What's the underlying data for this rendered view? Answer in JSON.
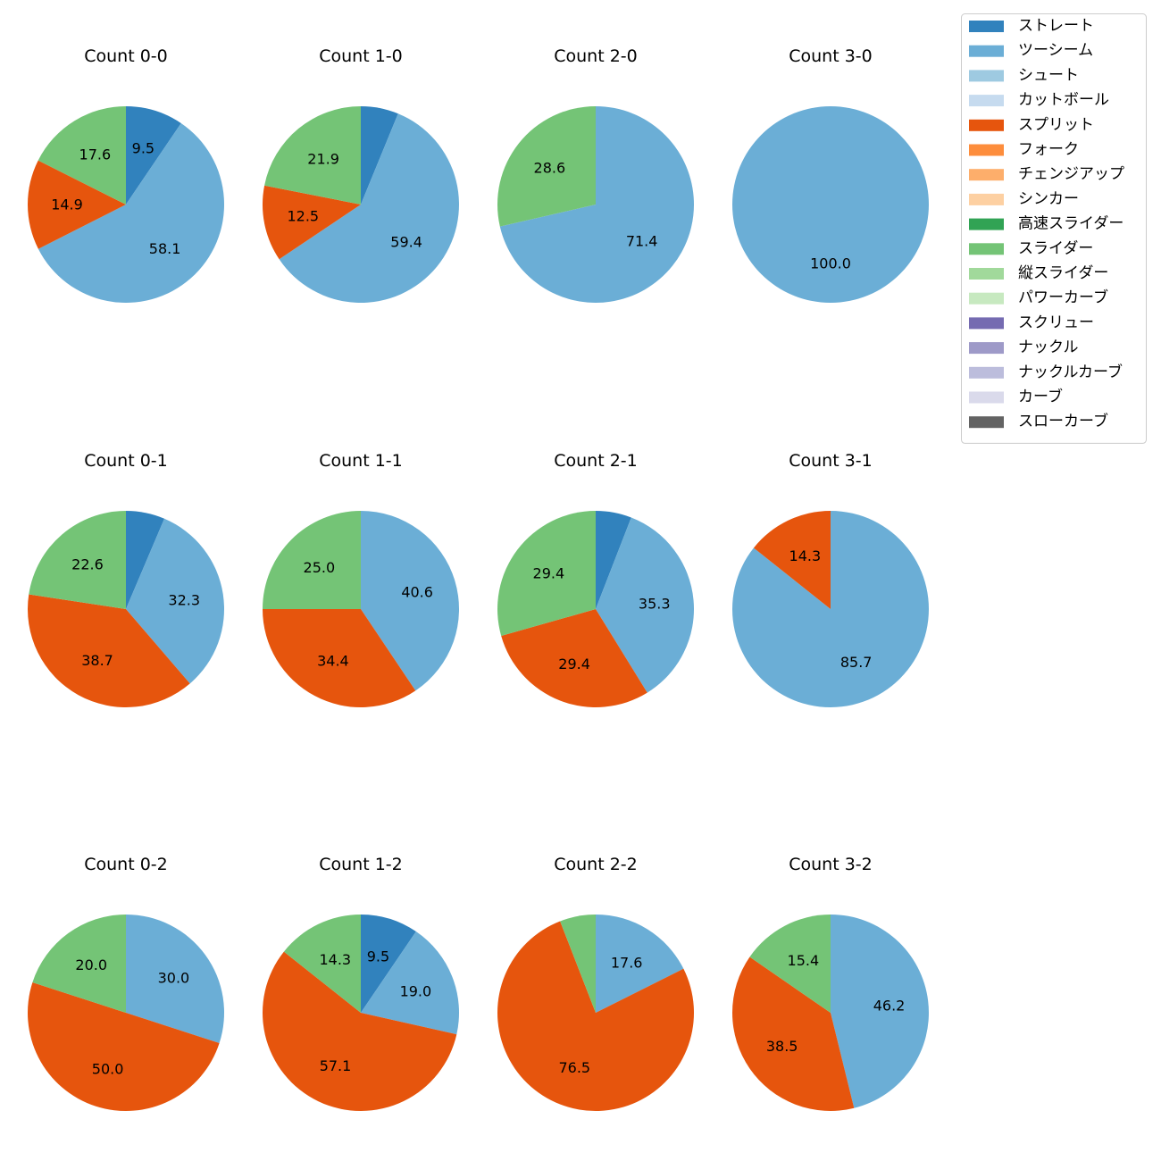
{
  "chart_data": {
    "type": "pie",
    "legend": {
      "position": "top-right",
      "entries": [
        {
          "name": "ストレート",
          "color": "#3182bd"
        },
        {
          "name": "ツーシーム",
          "color": "#6baed6"
        },
        {
          "name": "シュート",
          "color": "#9ecae1"
        },
        {
          "name": "カットボール",
          "color": "#c6dbef"
        },
        {
          "name": "スプリット",
          "color": "#e6550d"
        },
        {
          "name": "フォーク",
          "color": "#fd8d3c"
        },
        {
          "name": "チェンジアップ",
          "color": "#fdae6b"
        },
        {
          "name": "シンカー",
          "color": "#fdd0a2"
        },
        {
          "name": "高速スライダー",
          "color": "#31a354"
        },
        {
          "name": "スライダー",
          "color": "#74c476"
        },
        {
          "name": "縦スライダー",
          "color": "#a1d99b"
        },
        {
          "name": "パワーカーブ",
          "color": "#c7e9c0"
        },
        {
          "name": "スクリュー",
          "color": "#756bb1"
        },
        {
          "name": "ナックル",
          "color": "#9e9ac8"
        },
        {
          "name": "ナックルカーブ",
          "color": "#bcbddc"
        },
        {
          "name": "カーブ",
          "color": "#dadaeb"
        },
        {
          "name": "スローカーブ",
          "color": "#636363"
        }
      ]
    },
    "pies": [
      {
        "title": "Count 0-0",
        "slices": [
          {
            "pitch": "ストレート",
            "value": 9.5
          },
          {
            "pitch": "ツーシーム",
            "value": 58.1
          },
          {
            "pitch": "スプリット",
            "value": 14.9
          },
          {
            "pitch": "スライダー",
            "value": 17.6
          }
        ]
      },
      {
        "title": "Count 1-0",
        "slices": [
          {
            "pitch": "ストレート",
            "value": 6.2
          },
          {
            "pitch": "ツーシーム",
            "value": 59.4
          },
          {
            "pitch": "スプリット",
            "value": 12.5
          },
          {
            "pitch": "スライダー",
            "value": 21.9
          }
        ]
      },
      {
        "title": "Count 2-0",
        "slices": [
          {
            "pitch": "ツーシーム",
            "value": 71.4
          },
          {
            "pitch": "スライダー",
            "value": 28.6
          }
        ]
      },
      {
        "title": "Count 3-0",
        "slices": [
          {
            "pitch": "ツーシーム",
            "value": 100.0
          }
        ]
      },
      {
        "title": "Count 0-1",
        "slices": [
          {
            "pitch": "ストレート",
            "value": 6.4
          },
          {
            "pitch": "ツーシーム",
            "value": 32.3
          },
          {
            "pitch": "スプリット",
            "value": 38.7
          },
          {
            "pitch": "スライダー",
            "value": 22.6
          }
        ]
      },
      {
        "title": "Count 1-1",
        "slices": [
          {
            "pitch": "ツーシーム",
            "value": 40.6
          },
          {
            "pitch": "スプリット",
            "value": 34.4
          },
          {
            "pitch": "スライダー",
            "value": 25.0
          }
        ]
      },
      {
        "title": "Count 2-1",
        "slices": [
          {
            "pitch": "ストレート",
            "value": 5.9
          },
          {
            "pitch": "ツーシーム",
            "value": 35.3
          },
          {
            "pitch": "スプリット",
            "value": 29.4
          },
          {
            "pitch": "スライダー",
            "value": 29.4
          }
        ]
      },
      {
        "title": "Count 3-1",
        "slices": [
          {
            "pitch": "ツーシーム",
            "value": 85.7
          },
          {
            "pitch": "スプリット",
            "value": 14.3
          }
        ]
      },
      {
        "title": "Count 0-2",
        "slices": [
          {
            "pitch": "ツーシーム",
            "value": 30.0
          },
          {
            "pitch": "スプリット",
            "value": 50.0
          },
          {
            "pitch": "スライダー",
            "value": 20.0
          }
        ]
      },
      {
        "title": "Count 1-2",
        "slices": [
          {
            "pitch": "ストレート",
            "value": 9.5
          },
          {
            "pitch": "ツーシーム",
            "value": 19.0
          },
          {
            "pitch": "スプリット",
            "value": 57.1
          },
          {
            "pitch": "スライダー",
            "value": 14.3
          }
        ]
      },
      {
        "title": "Count 2-2",
        "slices": [
          {
            "pitch": "ツーシーム",
            "value": 17.6
          },
          {
            "pitch": "スプリット",
            "value": 76.5
          },
          {
            "pitch": "スライダー",
            "value": 5.9
          }
        ]
      },
      {
        "title": "Count 3-2",
        "slices": [
          {
            "pitch": "ツーシーム",
            "value": 46.2
          },
          {
            "pitch": "スプリット",
            "value": 38.5
          },
          {
            "pitch": "スライダー",
            "value": 15.4
          }
        ]
      }
    ],
    "label_threshold": 7
  }
}
